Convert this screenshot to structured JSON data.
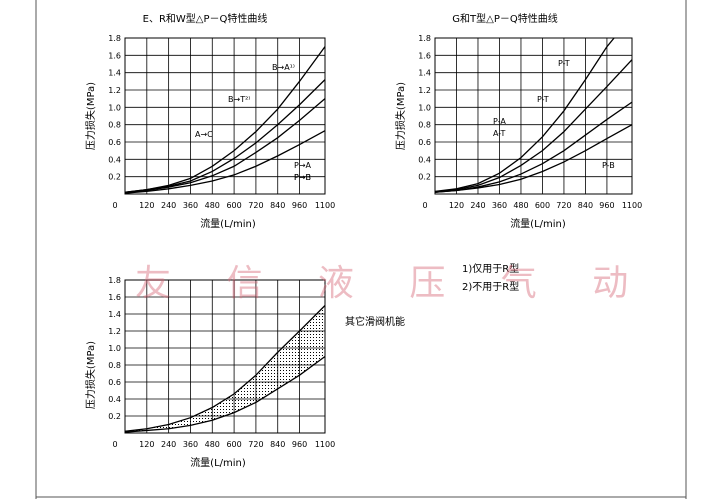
{
  "page": {
    "watermark": "友 信 液 压 气 动"
  },
  "notes": {
    "note1": "1)仅用于R型",
    "note2": "2)不用于R型"
  },
  "chart_data": [
    {
      "type": "line",
      "title": "E、R和W型△P－Q特性曲线",
      "xlabel": "流量(L/min)",
      "ylabel": "压力损失(MPa)",
      "xlim": [
        0,
        1100
      ],
      "ylim": [
        0,
        1.8
      ],
      "xticks": [
        120,
        240,
        360,
        480,
        600,
        720,
        840,
        960,
        1100
      ],
      "xtick_labels": [
        "120",
        "240",
        "360",
        "480",
        "600",
        "720",
        "840",
        "960",
        "1100"
      ],
      "x_origin_label": "0",
      "yticks": [
        0.2,
        0.4,
        0.6,
        0.8,
        1.0,
        1.2,
        1.4,
        1.6,
        1.8
      ],
      "ytick_labels": [
        "0.2",
        "0.4",
        "0.6",
        "0.8",
        "1.0",
        "1.2",
        "1.4",
        "1.6",
        "1.8"
      ],
      "grid": true,
      "series": [
        {
          "name": "B→A¹⁾",
          "x": [
            0,
            120,
            240,
            360,
            480,
            600,
            720,
            840,
            960,
            1100
          ],
          "y": [
            0.02,
            0.05,
            0.1,
            0.18,
            0.32,
            0.5,
            0.72,
            0.98,
            1.3,
            1.7
          ]
        },
        {
          "name": "B→T²⁾",
          "x": [
            0,
            120,
            240,
            360,
            480,
            600,
            720,
            840,
            960,
            1100
          ],
          "y": [
            0.02,
            0.05,
            0.09,
            0.15,
            0.26,
            0.41,
            0.59,
            0.8,
            1.03,
            1.32
          ]
        },
        {
          "name": "A→C",
          "x": [
            0,
            120,
            240,
            360,
            480,
            600,
            720,
            840,
            960,
            1100
          ],
          "y": [
            0.02,
            0.04,
            0.08,
            0.13,
            0.21,
            0.32,
            0.48,
            0.65,
            0.85,
            1.1
          ]
        },
        {
          "name": "P→A",
          "x": [
            0,
            120,
            240,
            360,
            480,
            600,
            720,
            840,
            960,
            1100
          ],
          "y": [
            0.01,
            0.03,
            0.06,
            0.1,
            0.15,
            0.22,
            0.32,
            0.44,
            0.57,
            0.73
          ]
        }
      ],
      "annotations": [
        "P→B"
      ]
    },
    {
      "type": "line",
      "title": "G和T型△P－Q特性曲线",
      "xlabel": "流量(L/min)",
      "ylabel": "压力损失(MPa)",
      "xlim": [
        0,
        1100
      ],
      "ylim": [
        0,
        1.8
      ],
      "xticks": [
        120,
        240,
        360,
        480,
        600,
        720,
        840,
        960,
        1100
      ],
      "xtick_labels": [
        "120",
        "240",
        "360",
        "480",
        "600",
        "720",
        "840",
        "960",
        "1100"
      ],
      "x_origin_label": "0",
      "yticks": [
        0.2,
        0.4,
        0.6,
        0.8,
        1.0,
        1.2,
        1.4,
        1.6,
        1.8
      ],
      "ytick_labels": [
        "0.2",
        "0.4",
        "0.6",
        "0.8",
        "1.0",
        "1.2",
        "1.4",
        "1.6",
        "1.8"
      ],
      "grid": true,
      "series": [
        {
          "name": "P-T",
          "x": [
            0,
            120,
            240,
            360,
            480,
            600,
            720,
            840,
            960,
            1000
          ],
          "y": [
            0.03,
            0.06,
            0.12,
            0.24,
            0.42,
            0.66,
            0.96,
            1.32,
            1.7,
            1.8
          ]
        },
        {
          "name": "P-T",
          "x": [
            0,
            120,
            240,
            360,
            480,
            600,
            720,
            840,
            960,
            1100
          ],
          "y": [
            0.02,
            0.05,
            0.1,
            0.19,
            0.33,
            0.5,
            0.72,
            0.98,
            1.24,
            1.55
          ]
        },
        {
          "name": "P-A",
          "x": [
            0,
            120,
            240,
            360,
            480,
            600,
            720,
            840,
            960,
            1100
          ],
          "y": [
            0.02,
            0.04,
            0.08,
            0.14,
            0.23,
            0.35,
            0.5,
            0.68,
            0.86,
            1.06
          ]
        },
        {
          "name": "A-T",
          "x": [
            0,
            120,
            240,
            360,
            480,
            600,
            720,
            840,
            960,
            1100
          ],
          "y": [
            0.02,
            0.04,
            0.07,
            0.11,
            0.17,
            0.26,
            0.37,
            0.5,
            0.64,
            0.8
          ]
        }
      ],
      "annotations": [
        "P-B"
      ]
    },
    {
      "type": "area",
      "title": "",
      "xlabel": "流量(L/min)",
      "ylabel": "压力损失(MPa)",
      "xlim": [
        0,
        1100
      ],
      "ylim": [
        0,
        1.8
      ],
      "xticks": [
        120,
        240,
        360,
        480,
        600,
        720,
        840,
        960,
        1100
      ],
      "xtick_labels": [
        "120",
        "240",
        "360",
        "480",
        "600",
        "720",
        "840",
        "960",
        "1100"
      ],
      "x_origin_label": "0",
      "yticks": [
        0.2,
        0.4,
        0.6,
        0.8,
        1.0,
        1.2,
        1.4,
        1.6,
        1.8
      ],
      "ytick_labels": [
        "0.2",
        "0.4",
        "0.6",
        "0.8",
        "1.0",
        "1.2",
        "1.4",
        "1.6",
        "1.8"
      ],
      "grid": true,
      "band_label": "其它滑阀机能",
      "series": [
        {
          "name": "",
          "x": [
            0,
            120,
            240,
            360,
            480,
            600,
            720,
            840,
            960,
            1100
          ],
          "y": [
            0.02,
            0.05,
            0.1,
            0.18,
            0.3,
            0.46,
            0.68,
            0.95,
            1.2,
            1.5
          ]
        },
        {
          "name": "",
          "x": [
            0,
            120,
            240,
            360,
            480,
            600,
            720,
            840,
            960,
            1100
          ],
          "y": [
            0.01,
            0.03,
            0.05,
            0.09,
            0.15,
            0.24,
            0.36,
            0.52,
            0.68,
            0.9
          ]
        }
      ]
    }
  ]
}
